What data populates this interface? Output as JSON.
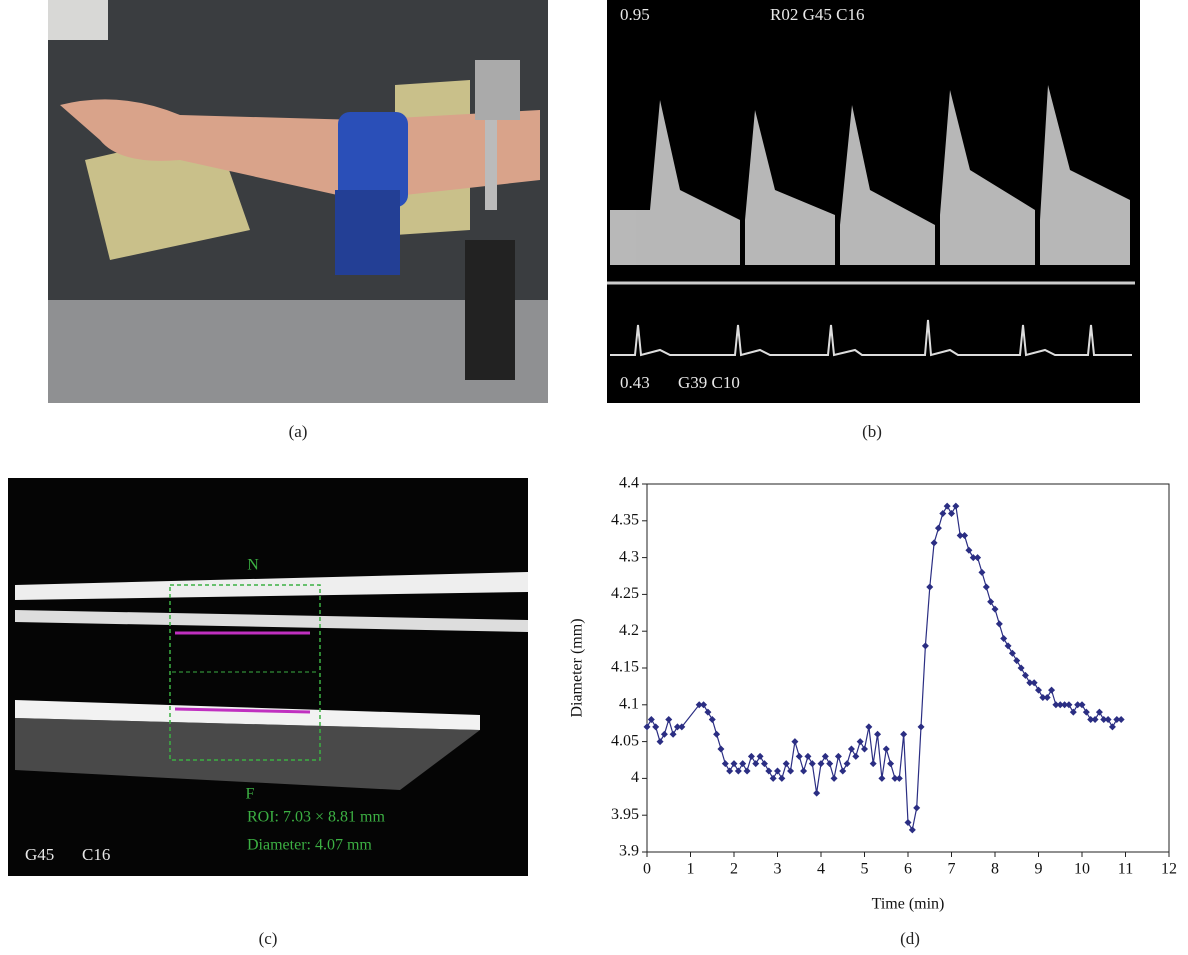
{
  "panels": {
    "a": {
      "caption": "(a)"
    },
    "b": {
      "caption": "(b)",
      "top_left": "0.95",
      "top_settings": "R02 G45 C16",
      "bottom_left": "0.43",
      "bottom_settings": "G39 C10"
    },
    "c": {
      "caption": "(c)",
      "near_label": "N",
      "far_label": "F",
      "roi": "ROI: 7.03 × 8.81 mm",
      "diameter": "Diameter: 4.07 mm",
      "gain": "G45",
      "compress": "C16"
    },
    "d": {
      "caption": "(d)"
    }
  },
  "chart_data": {
    "type": "line",
    "x_label": "Time (min)",
    "y_label": "Diameter (mm)",
    "xlim": [
      0,
      12
    ],
    "xticks": [
      0,
      1,
      2,
      3,
      4,
      5,
      6,
      7,
      8,
      9,
      10,
      11,
      12
    ],
    "ylim": [
      3.9,
      4.4
    ],
    "yticks": [
      3.9,
      3.95,
      4,
      4.05,
      4.1,
      4.15,
      4.2,
      4.25,
      4.3,
      4.35,
      4.4
    ],
    "series": [
      {
        "color": "#2b2e83",
        "x": [
          0,
          0.1,
          0.2,
          0.3,
          0.4,
          0.5,
          0.6,
          0.7,
          0.8,
          1.2,
          1.3,
          1.4,
          1.5,
          1.6,
          1.7,
          1.8,
          1.9,
          2.0,
          2.1,
          2.2,
          2.3,
          2.4,
          2.5,
          2.6,
          2.7,
          2.8,
          2.9,
          3.0,
          3.1,
          3.2,
          3.3,
          3.4,
          3.5,
          3.6,
          3.7,
          3.8,
          3.9,
          4.0,
          4.1,
          4.2,
          4.3,
          4.4,
          4.5,
          4.6,
          4.7,
          4.8,
          4.9,
          5.0,
          5.1,
          5.2,
          5.3,
          5.4,
          5.5,
          5.6,
          5.7,
          5.8,
          5.9,
          6.0,
          6.1,
          6.2,
          6.3,
          6.4,
          6.5,
          6.6,
          6.7,
          6.8,
          6.9,
          7.0,
          7.1,
          7.2,
          7.3,
          7.4,
          7.5,
          7.6,
          7.7,
          7.8,
          7.9,
          8.0,
          8.1,
          8.2,
          8.3,
          8.4,
          8.5,
          8.6,
          8.7,
          8.8,
          8.9,
          9.0,
          9.1,
          9.2,
          9.3,
          9.4,
          9.5,
          9.6,
          9.7,
          9.8,
          9.9,
          10.0,
          10.1,
          10.2,
          10.3,
          10.4,
          10.5,
          10.6,
          10.7,
          10.8,
          10.9
        ],
        "values": [
          4.07,
          4.08,
          4.07,
          4.05,
          4.06,
          4.08,
          4.06,
          4.07,
          4.07,
          4.1,
          4.1,
          4.09,
          4.08,
          4.06,
          4.04,
          4.02,
          4.01,
          4.02,
          4.01,
          4.02,
          4.01,
          4.03,
          4.02,
          4.03,
          4.02,
          4.01,
          4.0,
          4.01,
          4.0,
          4.02,
          4.01,
          4.05,
          4.03,
          4.01,
          4.03,
          4.02,
          3.98,
          4.02,
          4.03,
          4.02,
          4.0,
          4.03,
          4.01,
          4.02,
          4.04,
          4.03,
          4.05,
          4.04,
          4.07,
          4.02,
          4.06,
          4.0,
          4.04,
          4.02,
          4.0,
          4.0,
          4.06,
          3.94,
          3.93,
          3.96,
          4.07,
          4.18,
          4.26,
          4.32,
          4.34,
          4.36,
          4.37,
          4.36,
          4.37,
          4.33,
          4.33,
          4.31,
          4.3,
          4.3,
          4.28,
          4.26,
          4.24,
          4.23,
          4.21,
          4.19,
          4.18,
          4.17,
          4.16,
          4.15,
          4.14,
          4.13,
          4.13,
          4.12,
          4.11,
          4.11,
          4.12,
          4.1,
          4.1,
          4.1,
          4.1,
          4.09,
          4.1,
          4.1,
          4.09,
          4.08,
          4.08,
          4.09,
          4.08,
          4.08,
          4.07,
          4.08,
          4.08
        ]
      }
    ]
  }
}
